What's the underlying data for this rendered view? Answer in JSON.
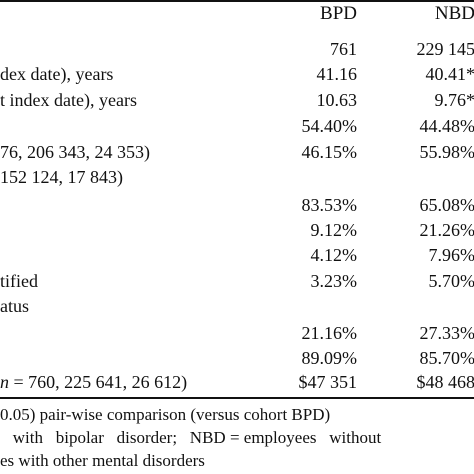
{
  "table": {
    "headers": {
      "col1": "BPD",
      "col2": "NBD"
    },
    "rows": [
      {
        "label": "",
        "c1": "761",
        "c2": "229 145"
      },
      {
        "label": "dex date), years",
        "c1": "41.16",
        "c2": "40.41*"
      },
      {
        "label": "t index date), years",
        "c1": "10.63",
        "c2": "9.76*"
      },
      {
        "label": "",
        "c1": "54.40%",
        "c2": "44.48%"
      },
      {
        "label": "76, 206 343, 24 353)",
        "c1": "46.15%",
        "c2": "55.98%"
      },
      {
        "label": " 152 124, 17 843)",
        "c1": "",
        "c2": ""
      },
      {
        "label": "",
        "c1": "83.53%",
        "c2": "65.08%"
      },
      {
        "label": "",
        "c1": "9.12%",
        "c2": "21.26%"
      },
      {
        "label": "",
        "c1": "4.12%",
        "c2": "7.96%"
      },
      {
        "label": "tified",
        "c1": "3.23%",
        "c2": "5.70%"
      },
      {
        "label": "atus",
        "c1": "",
        "c2": ""
      },
      {
        "label": "",
        "c1": "21.16%",
        "c2": "27.33%"
      },
      {
        "label": "",
        "c1": "89.09%",
        "c2": "85.70%"
      },
      {
        "label_italic": "n",
        "label_rest": " = 760, 225 641, 26 612)",
        "c1": "$47 351",
        "c2": "$48 468"
      }
    ]
  },
  "footnotes": {
    "line1": "0.05) pair-wise comparison (versus cohort BPD)",
    "line2": "   with   bipolar   disorder;   NBD = employees   without",
    "line3": "es with other mental disorders"
  }
}
